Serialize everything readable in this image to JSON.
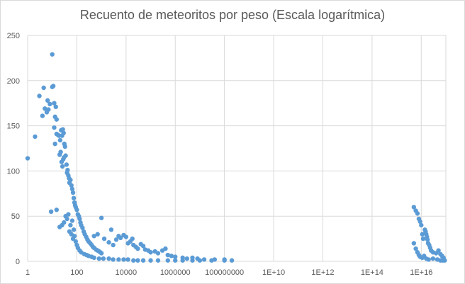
{
  "chart_data": {
    "type": "scatter",
    "title": "Recuento de meteoritos por peso (Escala logarítmica)",
    "xlabel": "",
    "ylabel": "",
    "x_scale": "log10",
    "xlim": [
      1,
      1e+17
    ],
    "ylim": [
      0,
      250
    ],
    "grid": true,
    "legend": "none",
    "color": "#5b9bd5",
    "x_ticks": [
      {
        "value": 1,
        "label": "1"
      },
      {
        "value": 100,
        "label": "100"
      },
      {
        "value": 10000,
        "label": "10000"
      },
      {
        "value": 1000000,
        "label": "1000000"
      },
      {
        "value": 100000000,
        "label": "100000000"
      },
      {
        "value": 10000000000,
        "label": "1E+10"
      },
      {
        "value": 1000000000000,
        "label": "1E+12"
      },
      {
        "value": 100000000000000,
        "label": "1E+14"
      },
      {
        "value": 10000000000000000,
        "label": "1E+16"
      }
    ],
    "y_ticks": [
      0,
      50,
      100,
      150,
      200,
      250
    ],
    "points": [
      [
        1,
        114
      ],
      [
        2,
        138
      ],
      [
        3,
        183
      ],
      [
        4,
        161
      ],
      [
        4.5,
        192
      ],
      [
        5,
        169
      ],
      [
        6,
        165
      ],
      [
        6.5,
        178
      ],
      [
        7,
        168
      ],
      [
        8,
        174
      ],
      [
        10,
        229
      ],
      [
        10,
        193
      ],
      [
        11,
        194
      ],
      [
        12,
        175
      ],
      [
        13,
        160
      ],
      [
        14,
        171
      ],
      [
        15,
        157
      ],
      [
        12,
        148
      ],
      [
        13,
        130
      ],
      [
        15,
        141
      ],
      [
        17,
        140
      ],
      [
        19,
        139
      ],
      [
        21,
        134
      ],
      [
        23,
        145
      ],
      [
        25,
        139
      ],
      [
        27,
        146
      ],
      [
        29,
        142
      ],
      [
        31,
        130
      ],
      [
        33,
        127
      ],
      [
        20,
        118
      ],
      [
        22,
        121
      ],
      [
        24,
        110
      ],
      [
        26,
        105
      ],
      [
        28,
        113
      ],
      [
        30,
        115
      ],
      [
        35,
        117
      ],
      [
        38,
        107
      ],
      [
        40,
        98
      ],
      [
        42,
        101
      ],
      [
        45,
        95
      ],
      [
        48,
        92
      ],
      [
        50,
        87
      ],
      [
        55,
        90
      ],
      [
        60,
        84
      ],
      [
        65,
        80
      ],
      [
        70,
        76
      ],
      [
        75,
        70
      ],
      [
        80,
        65
      ],
      [
        85,
        62
      ],
      [
        90,
        60
      ],
      [
        100,
        57
      ],
      [
        110,
        52
      ],
      [
        120,
        50
      ],
      [
        130,
        47
      ],
      [
        140,
        43
      ],
      [
        150,
        40
      ],
      [
        170,
        37
      ],
      [
        190,
        33
      ],
      [
        210,
        30
      ],
      [
        240,
        27
      ],
      [
        270,
        24
      ],
      [
        300,
        22
      ],
      [
        350,
        20
      ],
      [
        400,
        18
      ],
      [
        450,
        16
      ],
      [
        500,
        15
      ],
      [
        600,
        13
      ],
      [
        700,
        12
      ],
      [
        800,
        11
      ],
      [
        900,
        10
      ],
      [
        1000,
        9
      ],
      [
        9,
        55
      ],
      [
        15,
        57
      ],
      [
        20,
        38
      ],
      [
        25,
        40
      ],
      [
        30,
        43
      ],
      [
        35,
        50
      ],
      [
        40,
        47
      ],
      [
        45,
        52
      ],
      [
        55,
        40
      ],
      [
        65,
        45
      ],
      [
        75,
        35
      ],
      [
        60,
        30
      ],
      [
        50,
        33
      ],
      [
        70,
        25
      ],
      [
        80,
        28
      ],
      [
        90,
        22
      ],
      [
        100,
        18
      ],
      [
        110,
        15
      ],
      [
        130,
        12
      ],
      [
        150,
        10
      ],
      [
        200,
        8
      ],
      [
        250,
        7
      ],
      [
        300,
        6
      ],
      [
        400,
        5
      ],
      [
        500,
        4
      ],
      [
        800,
        3
      ],
      [
        1200,
        3
      ],
      [
        2000,
        3
      ],
      [
        3000,
        2
      ],
      [
        5000,
        2
      ],
      [
        8000,
        2
      ],
      [
        12000,
        2
      ],
      [
        20000,
        1
      ],
      [
        30000,
        1
      ],
      [
        50000,
        1
      ],
      [
        100000,
        1
      ],
      [
        200000,
        1
      ],
      [
        500000,
        1
      ],
      [
        1000000,
        1
      ],
      [
        2000000,
        1
      ],
      [
        5000000,
        1
      ],
      [
        10000000,
        1
      ],
      [
        30000000,
        1
      ],
      [
        100000000,
        1
      ],
      [
        200000000,
        1
      ],
      [
        500,
        28
      ],
      [
        700,
        30
      ],
      [
        1000,
        48
      ],
      [
        1300,
        25
      ],
      [
        2000,
        21
      ],
      [
        2500,
        35
      ],
      [
        3000,
        18
      ],
      [
        4000,
        24
      ],
      [
        5000,
        28
      ],
      [
        6000,
        26
      ],
      [
        8000,
        29
      ],
      [
        10000,
        27
      ],
      [
        12000,
        20
      ],
      [
        15000,
        22
      ],
      [
        18000,
        25
      ],
      [
        20000,
        18
      ],
      [
        25000,
        16
      ],
      [
        30000,
        14
      ],
      [
        40000,
        19
      ],
      [
        50000,
        17
      ],
      [
        60000,
        13
      ],
      [
        80000,
        12
      ],
      [
        100000,
        10
      ],
      [
        150000,
        11
      ],
      [
        200000,
        9
      ],
      [
        300000,
        12
      ],
      [
        400000,
        14
      ],
      [
        500000,
        7
      ],
      [
        700000,
        6
      ],
      [
        1000000,
        5
      ],
      [
        2000000,
        4
      ],
      [
        3000000,
        3
      ],
      [
        5000000,
        4
      ],
      [
        8000000,
        3
      ],
      [
        15000000,
        2
      ],
      [
        40000000,
        2
      ],
      [
        100000000,
        2
      ],
      [
        5000000000000000,
        60
      ],
      [
        6000000000000000,
        56
      ],
      [
        7000000000000000,
        53
      ],
      [
        8000000000000000,
        47
      ],
      [
        9000000000000000,
        44
      ],
      [
        10000000000000000,
        40
      ],
      [
        11000000000000000,
        30
      ],
      [
        12000000000000000,
        25
      ],
      [
        14000000000000000,
        35
      ],
      [
        15000000000000000,
        33
      ],
      [
        16000000000000000,
        30
      ],
      [
        17000000000000000,
        27
      ],
      [
        18000000000000000,
        24
      ],
      [
        19000000000000000,
        20
      ],
      [
        21000000000000000,
        18
      ],
      [
        23000000000000000,
        15
      ],
      [
        25000000000000000,
        12
      ],
      [
        30000000000000000,
        10
      ],
      [
        40000000000000000,
        9
      ],
      [
        50000000000000000,
        12
      ],
      [
        60000000000000000,
        8
      ],
      [
        70000000000000000,
        6
      ],
      [
        80000000000000000,
        4
      ],
      [
        5000000000000000,
        20
      ],
      [
        6000000000000000,
        14
      ],
      [
        7000000000000000,
        10
      ],
      [
        8000000000000000,
        7
      ],
      [
        9000000000000000,
        5
      ],
      [
        11000000000000000,
        4
      ],
      [
        13000000000000000,
        6
      ],
      [
        16000000000000000,
        3
      ],
      [
        20000000000000000,
        2
      ],
      [
        30000000000000000,
        3
      ],
      [
        45000000000000000,
        2
      ],
      [
        60000000000000000,
        1
      ],
      [
        75000000000000000,
        1
      ],
      [
        90000000000000000,
        1
      ]
    ]
  }
}
